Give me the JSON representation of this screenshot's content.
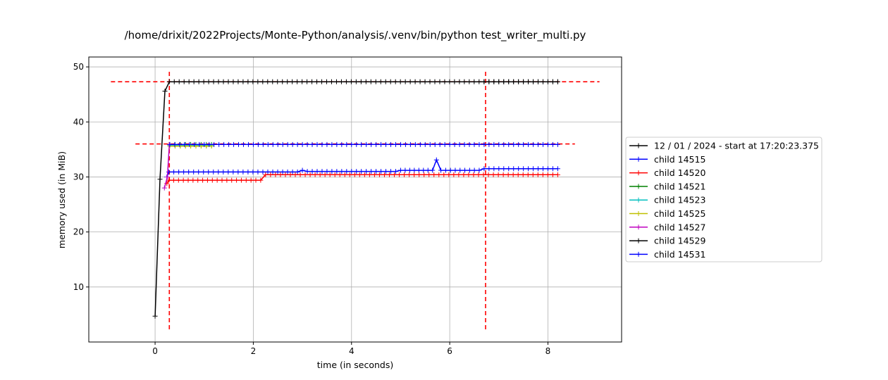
{
  "chart_data": {
    "type": "line",
    "title": "/home/drixit/2022Projects/Monte-Python/analysis/.venv/bin/python test_writer_multi.py",
    "xlabel": "time (in seconds)",
    "ylabel": "memory used (in MiB)",
    "xlim": [
      -1.35,
      9.5
    ],
    "ylim": [
      0.0,
      51.8
    ],
    "xticks": [
      0,
      2,
      4,
      6,
      8
    ],
    "yticks": [
      10,
      20,
      30,
      40,
      50
    ],
    "grid": true,
    "legend_position": "outside-right",
    "series": [
      {
        "name": "12 / 01 / 2024 - start at 17:20:23.375",
        "color": "#000000",
        "points": [
          [
            0.0,
            4.7
          ],
          [
            0.1,
            29.6
          ],
          [
            0.2,
            45.6
          ],
          [
            0.29,
            47.3
          ],
          [
            8.2,
            47.3
          ]
        ]
      },
      {
        "name": "child 14515",
        "color": "#0000ff",
        "points": [
          [
            0.24,
            30.0
          ],
          [
            0.28,
            30.9
          ],
          [
            2.9,
            30.9
          ],
          [
            3.0,
            31.2
          ],
          [
            3.1,
            31.0
          ],
          [
            4.9,
            31.0
          ],
          [
            5.0,
            31.2
          ],
          [
            5.65,
            31.2
          ],
          [
            5.73,
            33.1
          ],
          [
            5.82,
            31.2
          ],
          [
            6.6,
            31.2
          ],
          [
            6.7,
            31.5
          ],
          [
            8.2,
            31.5
          ]
        ]
      },
      {
        "name": "child 14520",
        "color": "#ff0000",
        "points": [
          [
            0.24,
            28.8
          ],
          [
            0.28,
            29.4
          ],
          [
            2.15,
            29.4
          ],
          [
            2.25,
            30.4
          ],
          [
            8.2,
            30.4
          ]
        ]
      },
      {
        "name": "child 14521",
        "color": "#008000",
        "points": [
          [
            0.3,
            35.9
          ],
          [
            1.15,
            35.9
          ]
        ]
      },
      {
        "name": "child 14523",
        "color": "#00bfbf",
        "points": [
          [
            0.3,
            35.7
          ],
          [
            1.15,
            35.7
          ]
        ]
      },
      {
        "name": "child 14525",
        "color": "#bfbf00",
        "points": [
          [
            0.3,
            35.6
          ],
          [
            1.15,
            35.6
          ]
        ]
      },
      {
        "name": "child 14527",
        "color": "#bf00bf",
        "points": [
          [
            0.19,
            28.0
          ],
          [
            0.25,
            30.0
          ],
          [
            0.29,
            35.9
          ]
        ]
      },
      {
        "name": "child 14529",
        "color": "#000000",
        "points": [
          [
            6.7,
            47.3
          ],
          [
            8.2,
            47.3
          ]
        ]
      },
      {
        "name": "child 14531",
        "color": "#0000ff",
        "points": [
          [
            0.3,
            35.9
          ],
          [
            8.2,
            35.9
          ]
        ]
      }
    ],
    "reference_lines": [
      {
        "orientation": "h",
        "y": 47.3,
        "from": -0.9,
        "to": 9.05,
        "color": "#ff0000"
      },
      {
        "orientation": "h",
        "y": 36.0,
        "from": -0.4,
        "to": 8.55,
        "color": "#ff0000"
      },
      {
        "orientation": "v",
        "x": 0.29,
        "from": 2.3,
        "to": 49.5,
        "color": "#ff0000"
      },
      {
        "orientation": "v",
        "x": 6.73,
        "from": 2.3,
        "to": 49.5,
        "color": "#ff0000"
      }
    ]
  }
}
